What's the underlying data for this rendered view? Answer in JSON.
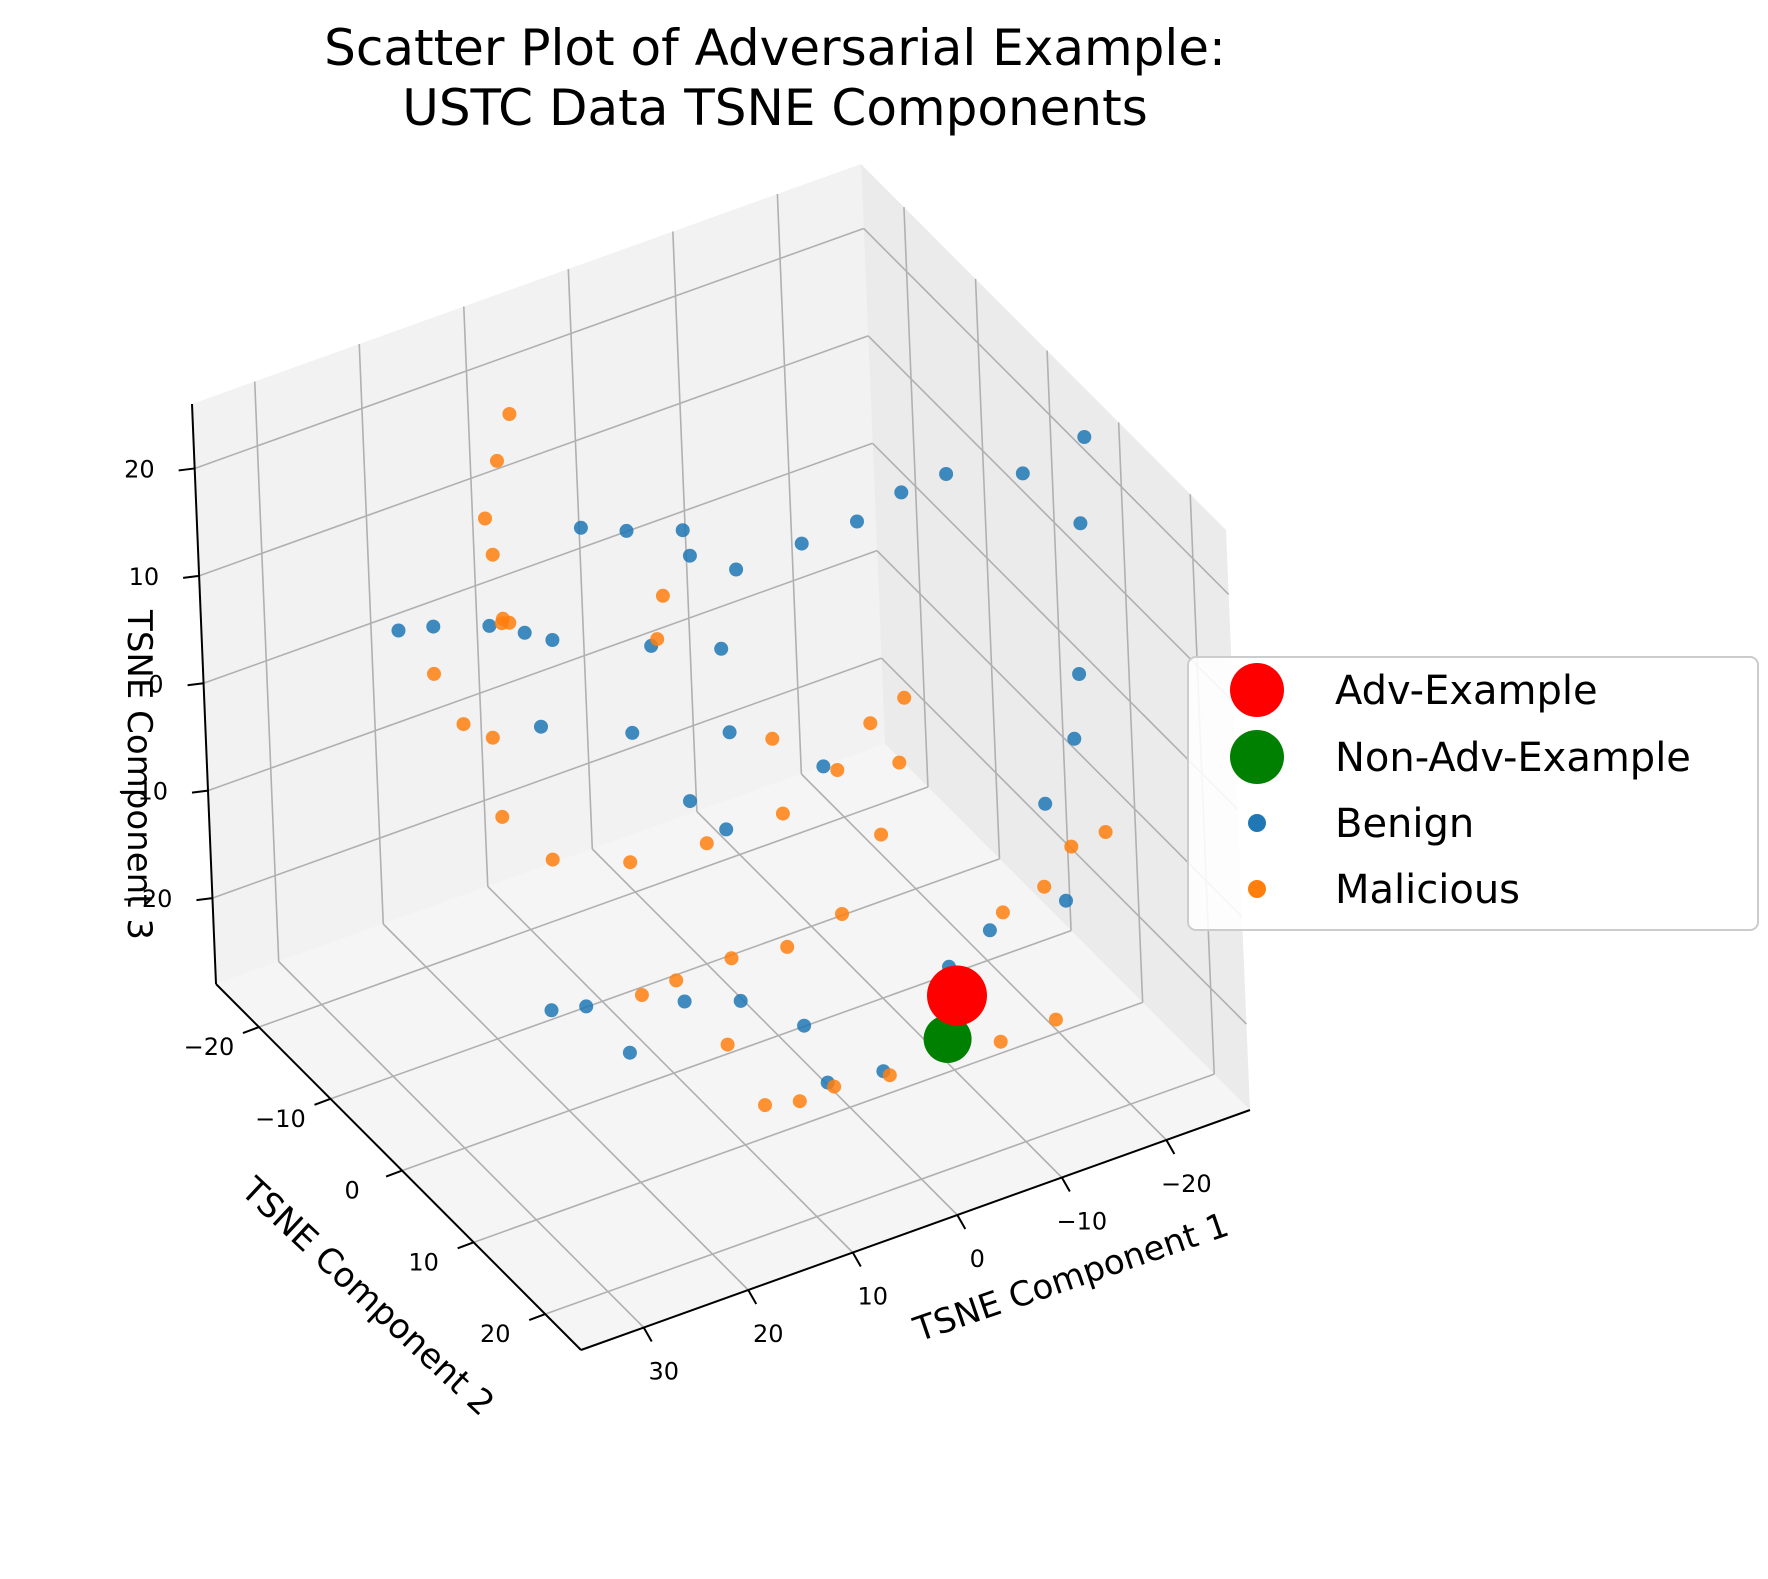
{
  "chart_data": {
    "type": "scatter",
    "title_lines": [
      "Scatter Plot of Adversarial Example:",
      "USTC Data TSNE Components"
    ],
    "xlabel": "TSNE Component 1",
    "ylabel": "TSNE Component 2",
    "zlabel": "TSNE Component 3",
    "x_ticks": [
      30,
      20,
      10,
      0,
      -10,
      -20
    ],
    "y_ticks": [
      -20,
      -10,
      0,
      10,
      20
    ],
    "z_ticks": [
      20,
      10,
      0,
      -10,
      -20
    ],
    "x_tick_labels": [
      "30",
      "20",
      "10",
      "0",
      "−10",
      "−20"
    ],
    "y_tick_labels": [
      "−20",
      "−10",
      "0",
      "10",
      "20"
    ],
    "z_tick_labels": [
      "20",
      "10",
      "0",
      "−10",
      "−20"
    ],
    "xlim": [
      -28,
      36
    ],
    "ylim": [
      -26,
      25
    ],
    "zlim": [
      -28,
      26
    ],
    "grid": true,
    "legend_placement": "right",
    "colors": {
      "adv": "#ff0000",
      "non_adv": "#008000",
      "benign": "#1f77b4",
      "malicious": "#ff7f0e"
    },
    "legend": [
      {
        "label": "Adv-Example",
        "color": "#ff0000",
        "marker": "large"
      },
      {
        "label": "Non-Adv-Example",
        "color": "#008000",
        "marker": "large"
      },
      {
        "label": "Benign",
        "color": "#1f77b4",
        "marker": "small"
      },
      {
        "label": "Malicious",
        "color": "#ff7f0e",
        "marker": "small"
      }
    ],
    "series": [
      {
        "name": "Adv-Example",
        "points": [
          {
            "x": -6,
            "y": 17,
            "z": -15
          }
        ]
      },
      {
        "name": "Non-Adv-Example",
        "points": [
          {
            "x": -3,
            "y": 20,
            "z": -16
          }
        ]
      },
      {
        "name": "Benign",
        "points": [
          {
            "x": 20,
            "y": -22,
            "z": 2
          },
          {
            "x": 18,
            "y": -20,
            "z": 3
          },
          {
            "x": 14,
            "y": -18,
            "z": 3
          },
          {
            "x": 12,
            "y": -16,
            "z": 3
          },
          {
            "x": 5,
            "y": -18,
            "z": 9
          },
          {
            "x": 2,
            "y": -16,
            "z": 9
          },
          {
            "x": -2,
            "y": -14,
            "z": 9
          },
          {
            "x": 0,
            "y": -10,
            "z": 10
          },
          {
            "x": -3,
            "y": -8,
            "z": 9
          },
          {
            "x": -8,
            "y": -6,
            "z": 11
          },
          {
            "x": -12,
            "y": -4,
            "z": 13
          },
          {
            "x": -15,
            "y": -2,
            "z": 16
          },
          {
            "x": -18,
            "y": 0,
            "z": 18
          },
          {
            "x": -22,
            "y": 5,
            "z": 20
          },
          {
            "x": -26,
            "y": 8,
            "z": 24
          },
          {
            "x": -24,
            "y": 10,
            "z": 18
          },
          {
            "x": -22,
            "y": 12,
            "z": 6
          },
          {
            "x": -20,
            "y": 14,
            "z": 2
          },
          {
            "x": -17,
            "y": 14,
            "z": -3
          },
          {
            "x": -16,
            "y": 18,
            "z": -9
          },
          {
            "x": -10,
            "y": 16,
            "z": -11
          },
          {
            "x": -6,
            "y": 16,
            "z": -13
          },
          {
            "x": 20,
            "y": -2,
            "z": -20
          },
          {
            "x": 18,
            "y": 0,
            "z": -19
          },
          {
            "x": 16,
            "y": 3,
            "z": -22
          },
          {
            "x": 10,
            "y": 2,
            "z": -20
          },
          {
            "x": 6,
            "y": 4,
            "z": -20
          },
          {
            "x": 2,
            "y": 10,
            "z": -25
          },
          {
            "x": -2,
            "y": 12,
            "z": -24
          },
          {
            "x": 4,
            "y": 10,
            "z": -19
          },
          {
            "x": 8,
            "y": 6,
            "z": -2
          },
          {
            "x": 10,
            "y": 4,
            "z": 0
          },
          {
            "x": 6,
            "y": 4,
            "z": 5
          },
          {
            "x": 10,
            "y": -4,
            "z": 1
          },
          {
            "x": 16,
            "y": -8,
            "z": 1
          },
          {
            "x": 12,
            "y": -12,
            "z": 5
          },
          {
            "x": 4,
            "y": -10,
            "z": 3
          },
          {
            "x": 0,
            "y": -6,
            "z": 4
          },
          {
            "x": -4,
            "y": 2,
            "z": -3
          }
        ]
      },
      {
        "name": "Malicious",
        "points": [
          {
            "x": 10,
            "y": -20,
            "z": 20
          },
          {
            "x": 12,
            "y": -19,
            "z": 17
          },
          {
            "x": 14,
            "y": -18,
            "z": 13
          },
          {
            "x": 16,
            "y": -14,
            "z": 13
          },
          {
            "x": 18,
            "y": -10,
            "z": 10
          },
          {
            "x": 14,
            "y": -16,
            "z": 5
          },
          {
            "x": 18,
            "y": -12,
            "z": -2
          },
          {
            "x": 20,
            "y": -8,
            "z": -6
          },
          {
            "x": 18,
            "y": -4,
            "z": -8
          },
          {
            "x": 12,
            "y": -2,
            "z": -9
          },
          {
            "x": 6,
            "y": 0,
            "z": -8
          },
          {
            "x": 0,
            "y": 2,
            "z": -6
          },
          {
            "x": -4,
            "y": 4,
            "z": -2
          },
          {
            "x": -6,
            "y": 6,
            "z": 3
          },
          {
            "x": -8,
            "y": 8,
            "z": 6
          },
          {
            "x": -6,
            "y": 10,
            "z": 2
          },
          {
            "x": -4,
            "y": 10,
            "z": -4
          },
          {
            "x": 0,
            "y": 10,
            "z": -10
          },
          {
            "x": 4,
            "y": 8,
            "z": -13
          },
          {
            "x": 8,
            "y": 6,
            "z": -14
          },
          {
            "x": 12,
            "y": 4,
            "z": -16
          },
          {
            "x": 14,
            "y": 2,
            "z": -18
          },
          {
            "x": 10,
            "y": 8,
            "z": -20
          },
          {
            "x": 6,
            "y": 12,
            "z": -24
          },
          {
            "x": 4,
            "y": 14,
            "z": -22
          },
          {
            "x": 8,
            "y": 10,
            "z": -25
          },
          {
            "x": 0,
            "y": 16,
            "z": -21
          },
          {
            "x": -4,
            "y": 18,
            "z": -19
          },
          {
            "x": -10,
            "y": 18,
            "z": -8
          },
          {
            "x": -14,
            "y": 18,
            "z": -7
          },
          {
            "x": -18,
            "y": 16,
            "z": -6
          },
          {
            "x": -20,
            "y": 18,
            "z": -4
          },
          {
            "x": -8,
            "y": 20,
            "z": -18
          },
          {
            "x": -12,
            "y": 22,
            "z": -16
          },
          {
            "x": 22,
            "y": -14,
            "z": 4
          },
          {
            "x": 22,
            "y": -10,
            "z": 2
          },
          {
            "x": 16,
            "y": -12,
            "z": 8
          },
          {
            "x": 6,
            "y": -6,
            "z": 7
          },
          {
            "x": 4,
            "y": -8,
            "z": 9
          },
          {
            "x": 2,
            "y": 4,
            "z": 3
          }
        ]
      }
    ]
  }
}
